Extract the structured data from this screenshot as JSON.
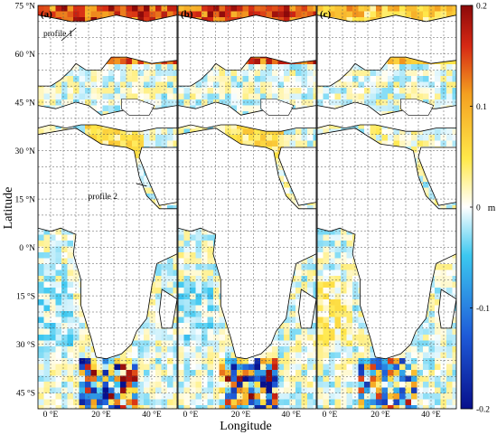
{
  "chart_data": {
    "type": "heatmap",
    "panels": [
      {
        "label": "(a)"
      },
      {
        "label": "(b)"
      },
      {
        "label": "(c)"
      }
    ],
    "xlabel": "Longitude",
    "ylabel": "Latitude",
    "x_tick_labels": [
      "0 °E",
      "20 °E",
      "40 °E"
    ],
    "x_ticks": [
      0,
      20,
      40
    ],
    "xlim": [
      -5,
      50
    ],
    "y_tick_labels": [
      "75 °N",
      "60 °N",
      "45 °N",
      "30 °N",
      "15 °N",
      "0 °N",
      "15 °S",
      "30 °S",
      "45 °S"
    ],
    "y_ticks": [
      75,
      60,
      45,
      30,
      15,
      0,
      -15,
      -30,
      -45
    ],
    "ylim": [
      -50,
      75
    ],
    "colorbar": {
      "unit": "m",
      "ticks": [
        0.2,
        0.1,
        0,
        -0.1,
        -0.2
      ],
      "tick_labels": [
        "0.2",
        "0.1",
        "0",
        "-0.1",
        "-0.2"
      ],
      "range": [
        -0.2,
        0.2
      ],
      "colors": [
        "#08108c",
        "#1e5ad8",
        "#3cc8f0",
        "#ffffff",
        "#ffe84a",
        "#f4a020",
        "#d62814",
        "#8c0a0a"
      ]
    },
    "annotations": [
      {
        "text": "profile 1",
        "panel": 0,
        "lon": 10,
        "lat": 68
      },
      {
        "text": "profile 2",
        "panel": 0,
        "lon": 38,
        "lat": 19
      }
    ],
    "grid": true
  }
}
